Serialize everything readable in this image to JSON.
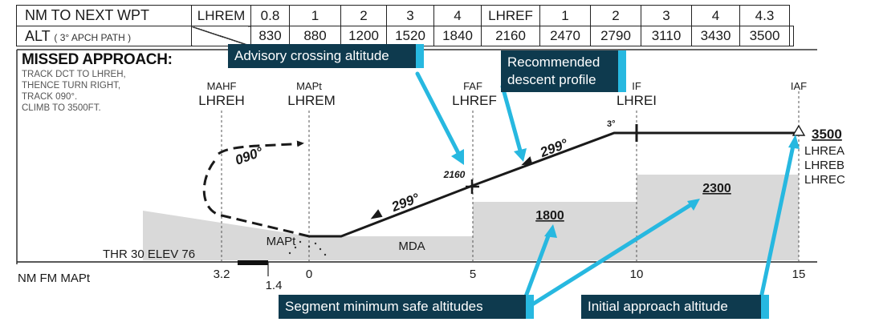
{
  "table": {
    "row1": {
      "label": "NM TO NEXT WPT",
      "cells": [
        "LHREM",
        "0.8",
        "1",
        "2",
        "3",
        "4",
        "LHREF",
        "1",
        "2",
        "3",
        "4",
        "4.3"
      ]
    },
    "row2": {
      "label": "ALT",
      "sublabel": "( 3° APCH PATH )",
      "cells": [
        "830",
        "880",
        "1200",
        "1520",
        "1840",
        "2160",
        "2470",
        "2790",
        "3110",
        "3430",
        "3500"
      ]
    }
  },
  "missed_approach": {
    "title": "MISSED APPROACH:",
    "lines": [
      "TRACK DCT TO LHREH,",
      "THENCE TURN RIGHT,",
      "TRACK 090°.",
      "CLIMB TO 3500FT."
    ]
  },
  "waypoints": {
    "mahf": {
      "role": "MAHF",
      "name": "LHREH"
    },
    "mapt": {
      "role": "MAPt",
      "name": "LHREM"
    },
    "faf": {
      "role": "FAF",
      "name": "LHREF"
    },
    "if": {
      "role": "IF",
      "name": "LHREI"
    },
    "iaf": {
      "role": "IAF",
      "names": [
        "LHREA",
        "LHREB",
        "LHREC"
      ]
    }
  },
  "labels": {
    "track_missed": "090°",
    "track_final": "299°",
    "track_intermediate": "299°",
    "crossing_alt": "2160",
    "glide_angle": "3°",
    "iaf_altitude": "3500",
    "msa_final": "1800",
    "msa_intermediate": "2300",
    "mda": "MDA",
    "mapt_ground": "MAPt",
    "threshold": "THR 30 ELEV 76",
    "distance_axis": "NM FM MAPt"
  },
  "distance_ticks": [
    "3.2",
    "1.4",
    "0",
    "5",
    "10",
    "15"
  ],
  "callouts": {
    "advisory": "Advisory crossing altitude",
    "recommended": [
      "Recommended",
      "descent profile"
    ],
    "segment_msa": "Segment minimum safe altitudes",
    "initial": "Initial approach altitude"
  },
  "colors": {
    "callout_bg": "#0e3a4e",
    "callout_accent": "#27b8e0",
    "terrain": "#d9d9d9",
    "ink": "#1a1a1a"
  }
}
